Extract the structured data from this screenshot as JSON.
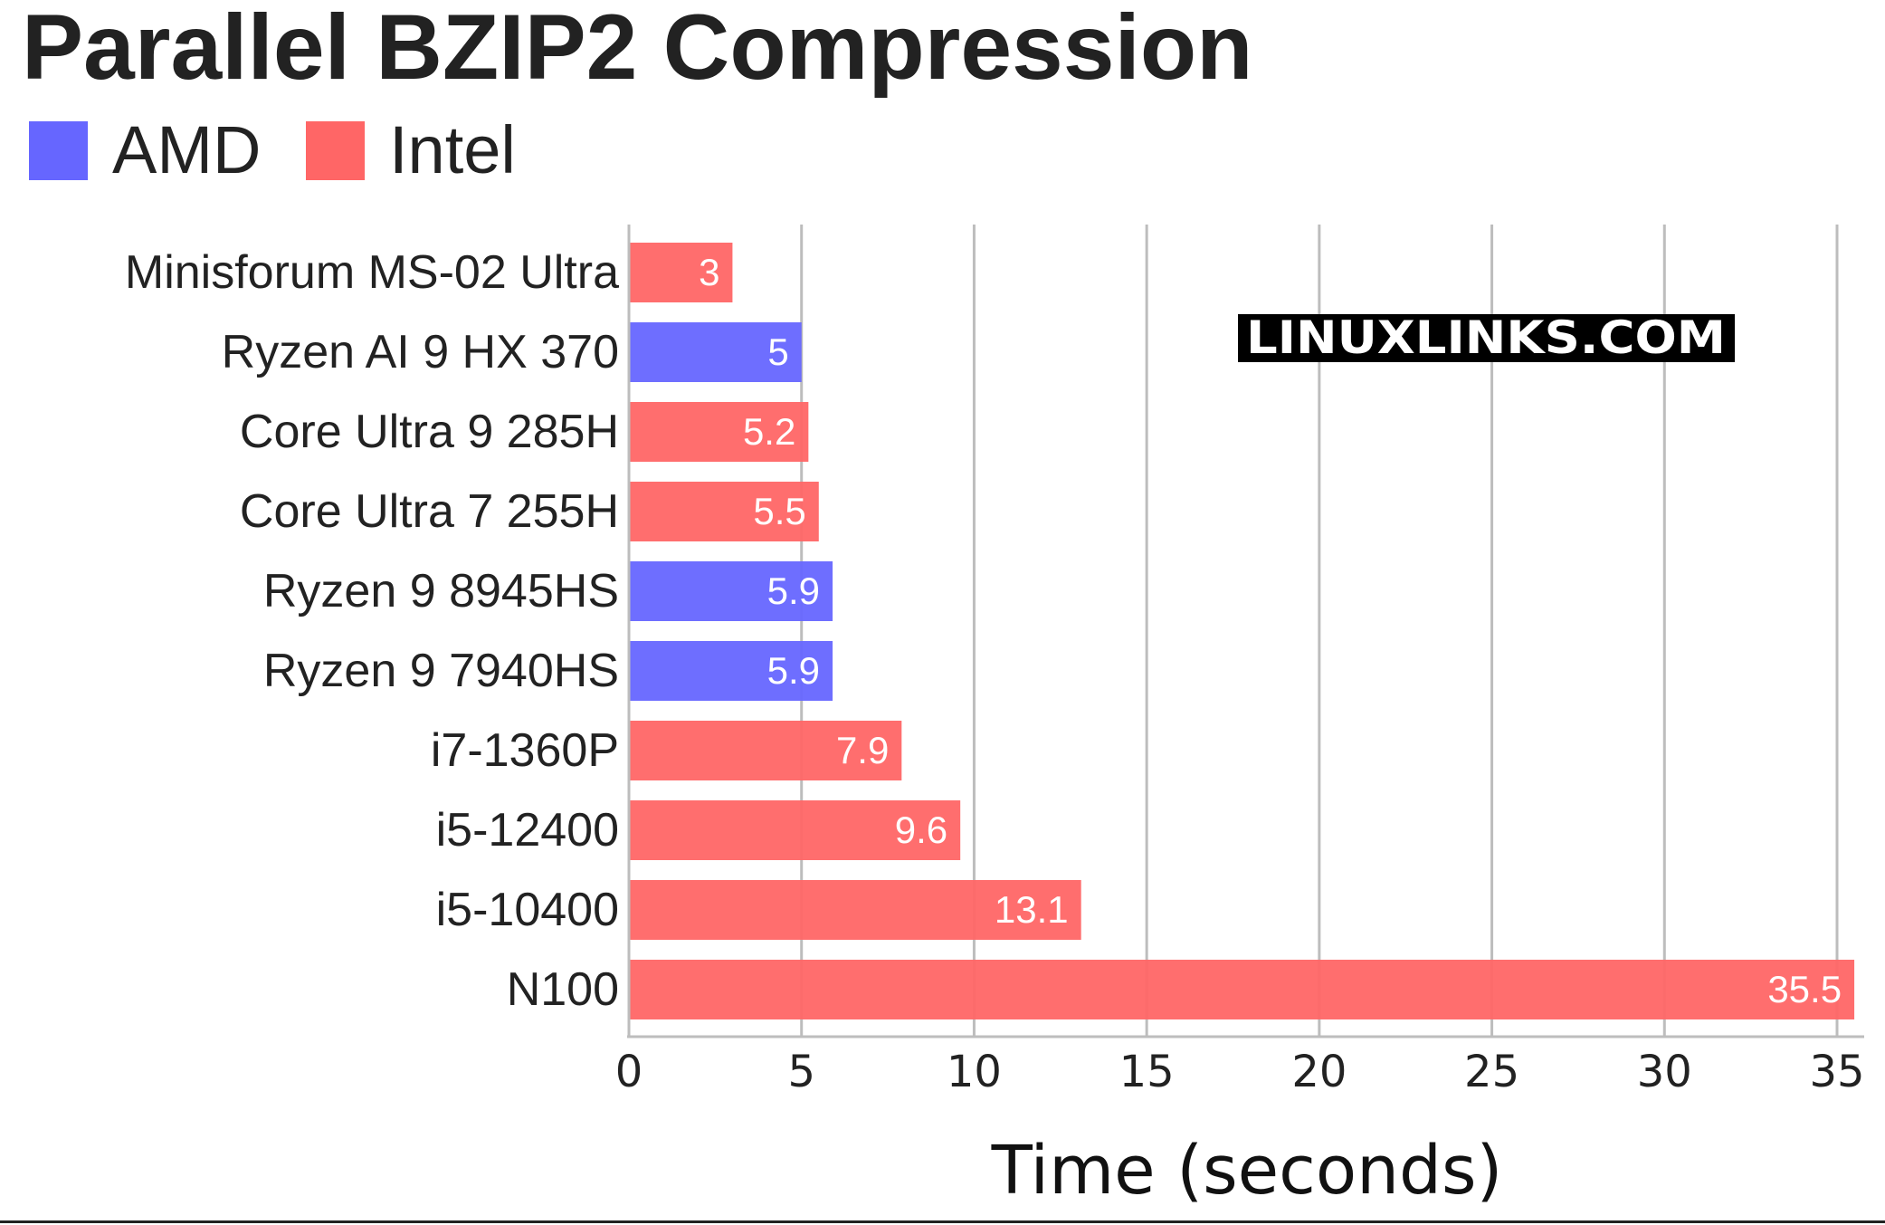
{
  "chart_data": {
    "type": "bar",
    "orientation": "horizontal",
    "title": "Parallel BZIP2 Compression",
    "xlabel": "Time (seconds)",
    "ylabel": "",
    "xlim": [
      0,
      35.5
    ],
    "xticks": [
      0,
      5,
      10,
      15,
      20,
      25,
      30,
      35
    ],
    "grid": "vertical",
    "legend_position": "top-left",
    "watermark": "LINUXLINKS.COM",
    "legend": [
      {
        "name": "AMD",
        "color": "#6666ff"
      },
      {
        "name": "Intel",
        "color": "#ff6666"
      }
    ],
    "categories": [
      "Minisforum MS-02 Ultra",
      "Ryzen AI 9 HX 370",
      "Core Ultra 9 285H",
      "Core Ultra 7 255H",
      "Ryzen 9 8945HS",
      "Ryzen 9 7940HS",
      "i7-1360P",
      "i5-12400",
      "i5-10400",
      "N100"
    ],
    "values": [
      3,
      5,
      5.2,
      5.5,
      5.9,
      5.9,
      7.9,
      9.6,
      13.1,
      35.5
    ],
    "value_labels": [
      "3",
      "5",
      "5.2",
      "5.5",
      "5.9",
      "5.9",
      "7.9",
      "9.6",
      "13.1",
      "35.5"
    ],
    "vendor": [
      "Intel",
      "AMD",
      "Intel",
      "Intel",
      "AMD",
      "AMD",
      "Intel",
      "Intel",
      "Intel",
      "Intel"
    ]
  }
}
